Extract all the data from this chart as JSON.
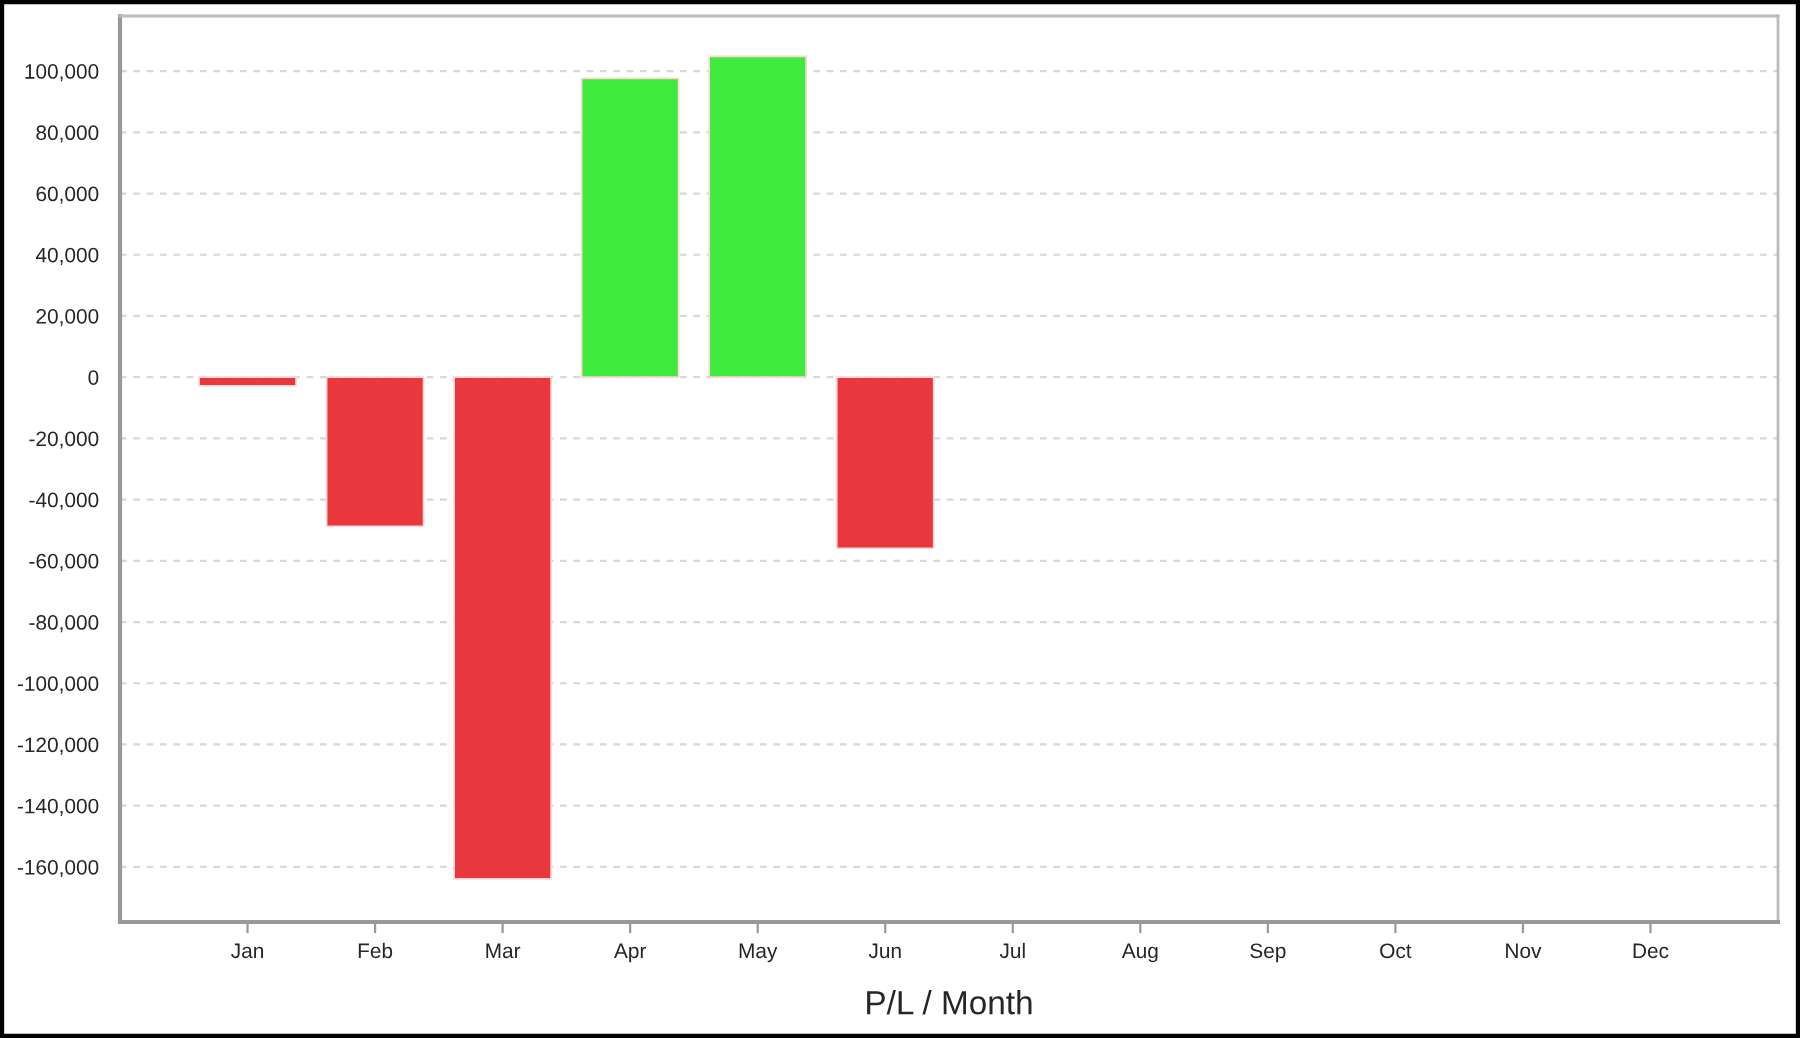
{
  "chart_data": {
    "type": "bar",
    "xlabel": "P/L / Month",
    "categories": [
      "Jan",
      "Feb",
      "Mar",
      "Apr",
      "May",
      "Jun",
      "Jul",
      "Aug",
      "Sep",
      "Oct",
      "Nov",
      "Dec"
    ],
    "values": [
      -2800,
      -48700,
      -163900,
      97600,
      104800,
      -55900,
      null,
      null,
      null,
      null,
      null,
      null
    ],
    "colors": [
      "#e8383d",
      "#e8383d",
      "#e8383d",
      "#3dea3d",
      "#3dea3d",
      "#e8383d",
      null,
      null,
      null,
      null,
      null,
      null
    ],
    "ylim": [
      -178000,
      118000
    ],
    "yticks": [
      {
        "value": -160000,
        "label": "-160,000"
      },
      {
        "value": -140000,
        "label": "-140,000"
      },
      {
        "value": -120000,
        "label": "-120,000"
      },
      {
        "value": -100000,
        "label": "-100,000"
      },
      {
        "value": -80000,
        "label": "-80,000"
      },
      {
        "value": -60000,
        "label": "-60,000"
      },
      {
        "value": -40000,
        "label": "-40,000"
      },
      {
        "value": -20000,
        "label": "-20,000"
      },
      0,
      {
        "value": 20000,
        "label": "20,000"
      },
      {
        "value": 40000,
        "label": "40,000"
      },
      {
        "value": 60000,
        "label": "60,000"
      },
      {
        "value": 80000,
        "label": "80,000"
      },
      {
        "value": 100000,
        "label": "100,000"
      }
    ],
    "grid": "y",
    "legend": false
  }
}
